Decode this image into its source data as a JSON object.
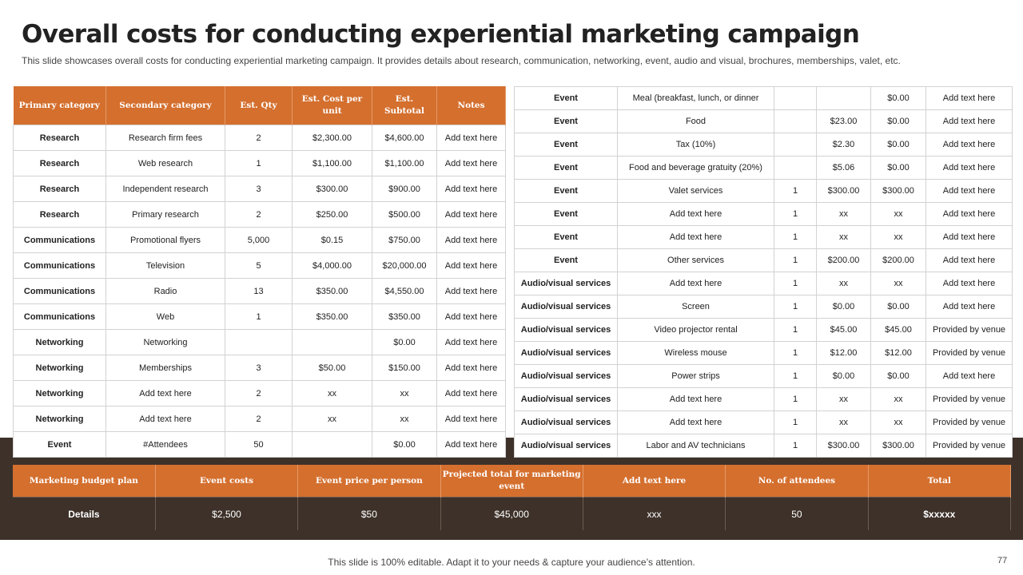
{
  "slide": {
    "title": "Overall costs for conducting experiential marketing campaign",
    "subtitle": "This slide showcases overall costs for conducting experiential marketing campaign. It provides details about research, communication, networking, event, audio and visual, brochures, memberships, valet, etc.",
    "footer": "This slide is 100% editable. Adapt it to your needs & capture your audience’s attention.",
    "page_number": "77"
  },
  "left_table": {
    "headers": [
      "Primary category",
      "Secondary category",
      "Est. Qty",
      "Est. Cost per unit",
      "Est. Subtotal",
      "Notes"
    ],
    "rows": [
      [
        "Research",
        "Research firm fees",
        "2",
        "$2,300.00",
        "$4,600.00",
        "Add text here"
      ],
      [
        "Research",
        "Web research",
        "1",
        "$1,100.00",
        "$1,100.00",
        "Add text here"
      ],
      [
        "Research",
        "Independent research",
        "3",
        "$300.00",
        "$900.00",
        "Add text here"
      ],
      [
        "Research",
        "Primary research",
        "2",
        "$250.00",
        "$500.00",
        "Add text here"
      ],
      [
        "Communications",
        "Promotional flyers",
        "5,000",
        "$0.15",
        "$750.00",
        "Add text here"
      ],
      [
        "Communications",
        "Television",
        "5",
        "$4,000.00",
        "$20,000.00",
        "Add text here"
      ],
      [
        "Communications",
        "Radio",
        "13",
        "$350.00",
        "$4,550.00",
        "Add text here"
      ],
      [
        "Communications",
        "Web",
        "1",
        "$350.00",
        "$350.00",
        "Add text here"
      ],
      [
        "Networking",
        "Networking",
        "",
        "",
        "$0.00",
        "Add text here"
      ],
      [
        "Networking",
        "Memberships",
        "3",
        "$50.00",
        "$150.00",
        "Add text here"
      ],
      [
        "Networking",
        "Add text here",
        "2",
        "xx",
        "xx",
        "Add text here"
      ],
      [
        "Networking",
        "Add text here",
        "2",
        "xx",
        "xx",
        "Add text here"
      ],
      [
        "Event",
        "#Attendees",
        "50",
        "",
        "$0.00",
        "Add text here"
      ]
    ]
  },
  "right_table": {
    "rows": [
      [
        "Event",
        "Meal (breakfast, lunch, or dinner",
        "",
        "",
        "$0.00",
        "Add text here"
      ],
      [
        "Event",
        "Food",
        "",
        "$23.00",
        "$0.00",
        "Add text here"
      ],
      [
        "Event",
        "Tax (10%)",
        "",
        "$2.30",
        "$0.00",
        "Add text here"
      ],
      [
        "Event",
        "Food and beverage gratuity (20%)",
        "",
        "$5.06",
        "$0.00",
        "Add text here"
      ],
      [
        "Event",
        "Valet services",
        "1",
        "$300.00",
        "$300.00",
        "Add text here"
      ],
      [
        "Event",
        "Add text here",
        "1",
        "xx",
        "xx",
        "Add text here"
      ],
      [
        "Event",
        "Add text here",
        "1",
        "xx",
        "xx",
        "Add text here"
      ],
      [
        "Event",
        "Other services",
        "1",
        "$200.00",
        "$200.00",
        "Add text here"
      ],
      [
        "Audio/visual services",
        "Add text here",
        "1",
        "xx",
        "xx",
        "Add text here"
      ],
      [
        "Audio/visual services",
        "Screen",
        "1",
        "$0.00",
        "$0.00",
        "Add text here"
      ],
      [
        "Audio/visual services",
        "Video projector rental",
        "1",
        "$45.00",
        "$45.00",
        "Provided by venue"
      ],
      [
        "Audio/visual services",
        "Wireless mouse",
        "1",
        "$12.00",
        "$12.00",
        "Provided by venue"
      ],
      [
        "Audio/visual services",
        "Power strips",
        "1",
        "$0.00",
        "$0.00",
        "Add text here"
      ],
      [
        "Audio/visual services",
        "Add text here",
        "1",
        "xx",
        "xx",
        "Provided by venue"
      ],
      [
        "Audio/visual services",
        "Add text here",
        "1",
        "xx",
        "xx",
        "Provided by venue"
      ],
      [
        "Audio/visual services",
        "Labor and AV technicians",
        "1",
        "$300.00",
        "$300.00",
        "Provided by venue"
      ]
    ]
  },
  "summary_table": {
    "headers": [
      "Marketing budget plan",
      "Event costs",
      "Event price per person",
      "Projected total for marketing event",
      "Add text here",
      "No. of attendees",
      "Total"
    ],
    "row": [
      "Details",
      "$2,500",
      "$50",
      "$45,000",
      "xxx",
      "50",
      "$xxxxx"
    ]
  },
  "colors": {
    "accent": "#d46f2e",
    "dark_band": "#3d3129",
    "grid": "#d2d2d2"
  }
}
